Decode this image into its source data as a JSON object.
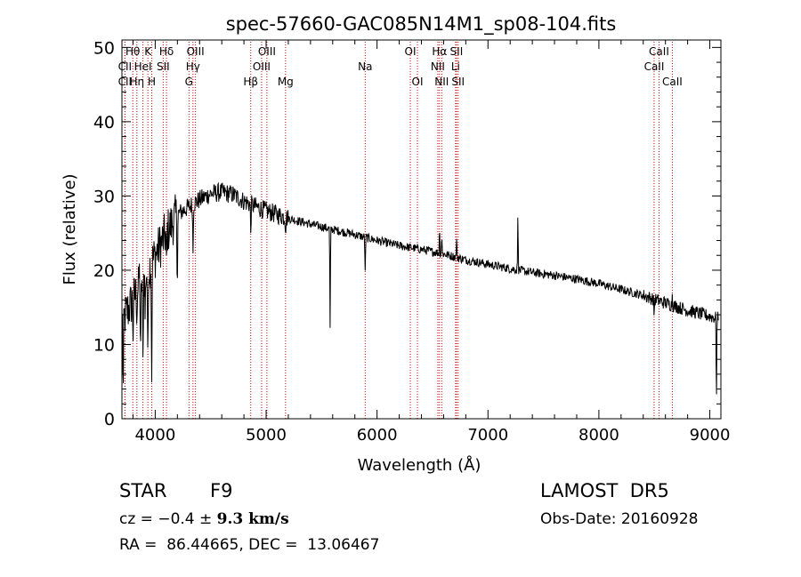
{
  "chart_data": {
    "type": "line",
    "title": "spec-57660-GAC085N14M1_sp08-104.fits",
    "xlabel": "Wavelength (Å)",
    "ylabel": "Flux (relative)",
    "xlim": [
      3700,
      9100
    ],
    "ylim": [
      0,
      51
    ],
    "xticks": [
      4000,
      5000,
      6000,
      7000,
      8000,
      9000
    ],
    "yticks": [
      0,
      10,
      20,
      30,
      40,
      50
    ],
    "line_color": "#000000",
    "marker_color": "#cc0000",
    "continuum": [
      [
        3700,
        13
      ],
      [
        3800,
        16
      ],
      [
        3900,
        19
      ],
      [
        4000,
        22
      ],
      [
        4100,
        25
      ],
      [
        4200,
        27.5
      ],
      [
        4300,
        28.5
      ],
      [
        4400,
        29.5
      ],
      [
        4500,
        30.3
      ],
      [
        4600,
        30.5
      ],
      [
        4700,
        30.2
      ],
      [
        4800,
        29.3
      ],
      [
        4900,
        28.6
      ],
      [
        5000,
        28
      ],
      [
        5100,
        27.5
      ],
      [
        5200,
        27
      ],
      [
        5400,
        26.2
      ],
      [
        5600,
        25.5
      ],
      [
        5800,
        24.8
      ],
      [
        6000,
        24
      ],
      [
        6200,
        23.3
      ],
      [
        6400,
        22.8
      ],
      [
        6600,
        22.2
      ],
      [
        6800,
        21.4
      ],
      [
        7000,
        20.8
      ],
      [
        7200,
        20.2
      ],
      [
        7400,
        19.7
      ],
      [
        7600,
        19.3
      ],
      [
        7800,
        18.8
      ],
      [
        8000,
        18.2
      ],
      [
        8200,
        17.4
      ],
      [
        8400,
        16.6
      ],
      [
        8600,
        15.6
      ],
      [
        8800,
        14.6
      ],
      [
        9000,
        13.8
      ],
      [
        9080,
        13.5
      ]
    ],
    "features": [
      {
        "x": 3712,
        "y": 2
      },
      {
        "x": 3800,
        "y": 11
      },
      {
        "x": 3835,
        "y": 14
      },
      {
        "x": 3855,
        "y": 20
      },
      {
        "x": 3868,
        "y": 6
      },
      {
        "x": 3889,
        "y": 7
      },
      {
        "x": 3910,
        "y": 13
      },
      {
        "x": 3933.7,
        "y": 5
      },
      {
        "x": 3968.5,
        "y": 4
      },
      {
        "x": 4101.7,
        "y": 19
      },
      {
        "x": 4200,
        "y": 18
      },
      {
        "x": 4340.5,
        "y": 22
      },
      {
        "x": 4861.3,
        "y": 25
      },
      {
        "x": 5175,
        "y": 25.5
      },
      {
        "x": 5577,
        "y": 12
      },
      {
        "x": 5893,
        "y": 19.5
      },
      {
        "x": 6563,
        "y": 26
      },
      {
        "x": 6583,
        "y": 25
      },
      {
        "x": 6717,
        "y": 24
      },
      {
        "x": 7270,
        "y": 28
      },
      {
        "x": 8498,
        "y": 14
      },
      {
        "x": 8662,
        "y": 17
      },
      {
        "x": 9060,
        "y": 2
      }
    ],
    "lines": [
      {
        "label": "Hθ",
        "x": 3798,
        "tier": 0
      },
      {
        "label": "CII",
        "x": 3727,
        "tier": 1
      },
      {
        "label": "CII",
        "x": 3727,
        "tier": 2
      },
      {
        "label": "Hη",
        "x": 3835,
        "tier": 2
      },
      {
        "label": "HeI",
        "x": 3889,
        "tier": 1
      },
      {
        "label": "K",
        "x": 3933.7,
        "tier": 0
      },
      {
        "label": "H",
        "x": 3968.5,
        "tier": 2
      },
      {
        "label": "SII",
        "x": 4072,
        "tier": 1
      },
      {
        "label": "Hδ",
        "x": 4101.7,
        "tier": 0
      },
      {
        "label": "OIII",
        "x": 4363,
        "tier": 0
      },
      {
        "label": "Hγ",
        "x": 4340.5,
        "tier": 1
      },
      {
        "label": "G",
        "x": 4304.4,
        "tier": 2
      },
      {
        "label": "Hβ",
        "x": 4861.3,
        "tier": 2
      },
      {
        "label": "OIII",
        "x": 4959,
        "tier": 1
      },
      {
        "label": "OIII",
        "x": 5007,
        "tier": 0
      },
      {
        "label": "Mg",
        "x": 5175,
        "tier": 2
      },
      {
        "label": "Na",
        "x": 5893,
        "tier": 1
      },
      {
        "label": "OI",
        "x": 6300,
        "tier": 0
      },
      {
        "label": "OI",
        "x": 6364,
        "tier": 2
      },
      {
        "label": "Hα",
        "x": 6562.8,
        "tier": 0
      },
      {
        "label": "NII",
        "x": 6548,
        "tier": 1
      },
      {
        "label": "NII",
        "x": 6583,
        "tier": 2
      },
      {
        "label": "SII",
        "x": 6716,
        "tier": 0
      },
      {
        "label": "Li",
        "x": 6708,
        "tier": 1
      },
      {
        "label": "SII",
        "x": 6731,
        "tier": 2
      },
      {
        "label": "CaII",
        "x": 8542,
        "tier": 0
      },
      {
        "label": "CaII",
        "x": 8498,
        "tier": 1
      },
      {
        "label": "CaII",
        "x": 8662,
        "tier": 2
      }
    ]
  },
  "info": {
    "object_class": "STAR",
    "subclass": "F9",
    "survey": "LAMOST  DR5",
    "redshift_prefix": "cz = −0.4 ± ",
    "redshift_value": "9.3 km/s",
    "obs_date": "Obs-Date: 20160928",
    "coords": "RA =  86.44665, DEC =  13.06467"
  }
}
